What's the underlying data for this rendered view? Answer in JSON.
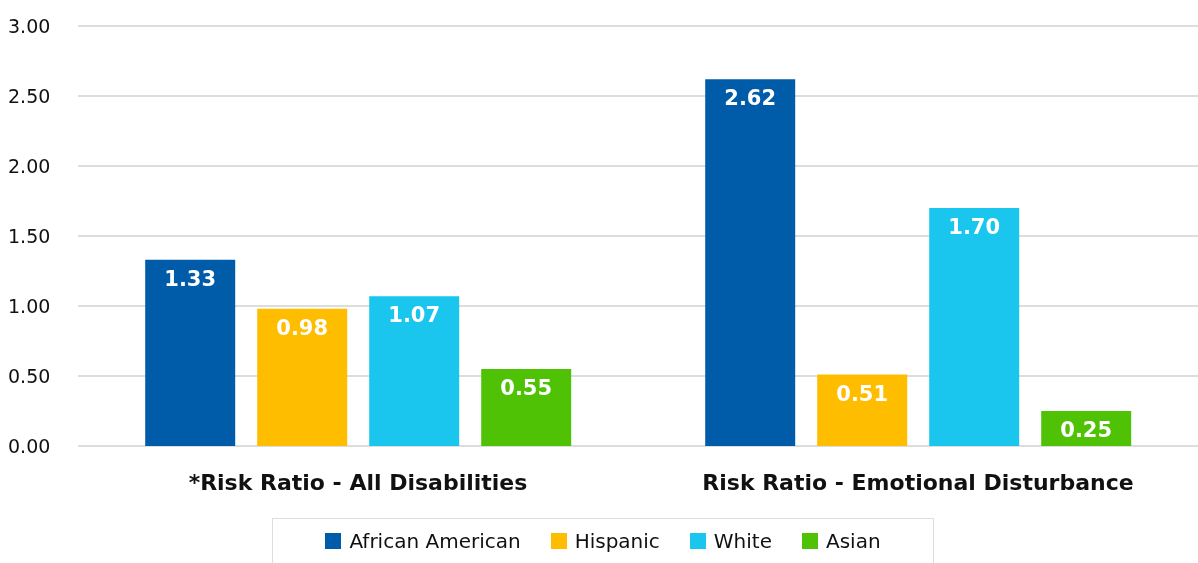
{
  "chart_data": {
    "type": "bar",
    "categories": [
      "*Risk Ratio - All Disabilities",
      "Risk Ratio - Emotional Disturbance"
    ],
    "series": [
      {
        "name": "African American",
        "color": "#005ca8",
        "values": [
          1.33,
          2.62
        ],
        "value_labels": [
          "1.33",
          "2.62"
        ]
      },
      {
        "name": "Hispanic",
        "color": "#ffbd00",
        "values": [
          0.98,
          0.51
        ],
        "value_labels": [
          "0.98",
          "0.51"
        ]
      },
      {
        "name": "White",
        "color": "#1ac6ee",
        "values": [
          1.07,
          1.7
        ],
        "value_labels": [
          "1.07",
          "1.70"
        ]
      },
      {
        "name": "Asian",
        "color": "#50c205",
        "values": [
          0.55,
          0.25
        ],
        "value_labels": [
          "0.55",
          "0.25"
        ]
      }
    ],
    "ylim": [
      0,
      3
    ],
    "yticks": [
      {
        "value": 0,
        "label": "0.00"
      },
      {
        "value": 0.5,
        "label": "0.50"
      },
      {
        "value": 1,
        "label": "1.00"
      },
      {
        "value": 1.5,
        "label": "1.50"
      },
      {
        "value": 2,
        "label": "2.00"
      },
      {
        "value": 2.5,
        "label": "2.50"
      },
      {
        "value": 3,
        "label": "3.00"
      }
    ],
    "grid": "y",
    "legend": "bottom"
  }
}
